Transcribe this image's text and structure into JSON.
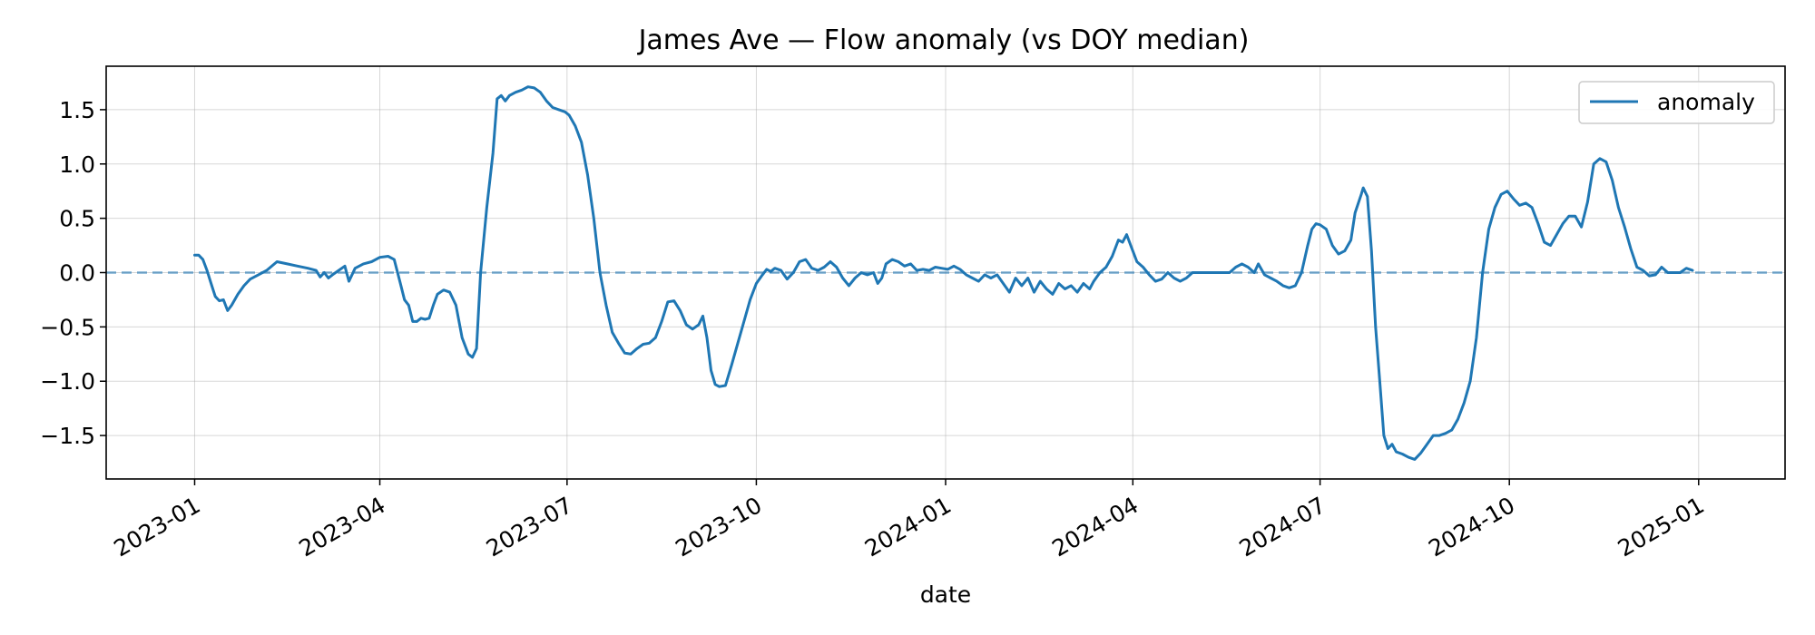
{
  "chart_data": {
    "type": "line",
    "title": "James Ave — Flow anomaly (vs DOY median)",
    "xlabel": "date",
    "ylabel": "",
    "x_ticks": [
      "2023-01",
      "2023-04",
      "2023-07",
      "2023-10",
      "2024-01",
      "2024-04",
      "2024-07",
      "2024-10",
      "2025-01"
    ],
    "y_ticks": [
      "−1.5",
      "−1.0",
      "−0.5",
      "0.0",
      "0.5",
      "1.0",
      "1.5"
    ],
    "xlim": [
      "2022-11-19",
      "2025-02-12"
    ],
    "ylim": [
      -1.9,
      1.9
    ],
    "grid": true,
    "legend": {
      "position": "top-right",
      "entries": [
        "anomaly"
      ]
    },
    "reference_line": {
      "y": 0.0,
      "style": "dashed"
    },
    "colors": {
      "series": "#1f77b4"
    },
    "series": [
      {
        "name": "anomaly",
        "points": [
          [
            "2023-01-01",
            0.16
          ],
          [
            "2023-01-03",
            0.16
          ],
          [
            "2023-01-05",
            0.12
          ],
          [
            "2023-01-07",
            0.02
          ],
          [
            "2023-01-09",
            -0.1
          ],
          [
            "2023-01-11",
            -0.22
          ],
          [
            "2023-01-13",
            -0.26
          ],
          [
            "2023-01-15",
            -0.25
          ],
          [
            "2023-01-17",
            -0.35
          ],
          [
            "2023-01-19",
            -0.3
          ],
          [
            "2023-01-22",
            -0.2
          ],
          [
            "2023-01-25",
            -0.12
          ],
          [
            "2023-01-28",
            -0.06
          ],
          [
            "2023-02-01",
            -0.02
          ],
          [
            "2023-02-05",
            0.02
          ],
          [
            "2023-02-10",
            0.1
          ],
          [
            "2023-02-15",
            0.08
          ],
          [
            "2023-02-20",
            0.06
          ],
          [
            "2023-02-25",
            0.04
          ],
          [
            "2023-03-01",
            0.02
          ],
          [
            "2023-03-03",
            -0.04
          ],
          [
            "2023-03-05",
            0.0
          ],
          [
            "2023-03-07",
            -0.05
          ],
          [
            "2023-03-09",
            -0.02
          ],
          [
            "2023-03-12",
            0.02
          ],
          [
            "2023-03-15",
            0.06
          ],
          [
            "2023-03-17",
            -0.08
          ],
          [
            "2023-03-20",
            0.04
          ],
          [
            "2023-03-24",
            0.08
          ],
          [
            "2023-03-28",
            0.1
          ],
          [
            "2023-04-01",
            0.14
          ],
          [
            "2023-04-05",
            0.15
          ],
          [
            "2023-04-08",
            0.12
          ],
          [
            "2023-04-11",
            -0.1
          ],
          [
            "2023-04-13",
            -0.25
          ],
          [
            "2023-04-15",
            -0.3
          ],
          [
            "2023-04-17",
            -0.45
          ],
          [
            "2023-04-19",
            -0.45
          ],
          [
            "2023-04-21",
            -0.42
          ],
          [
            "2023-04-23",
            -0.43
          ],
          [
            "2023-04-25",
            -0.42
          ],
          [
            "2023-04-27",
            -0.3
          ],
          [
            "2023-04-29",
            -0.2
          ],
          [
            "2023-05-02",
            -0.16
          ],
          [
            "2023-05-05",
            -0.18
          ],
          [
            "2023-05-08",
            -0.3
          ],
          [
            "2023-05-11",
            -0.6
          ],
          [
            "2023-05-14",
            -0.75
          ],
          [
            "2023-05-16",
            -0.78
          ],
          [
            "2023-05-18",
            -0.7
          ],
          [
            "2023-05-20",
            0.0
          ],
          [
            "2023-05-23",
            0.6
          ],
          [
            "2023-05-26",
            1.1
          ],
          [
            "2023-05-28",
            1.6
          ],
          [
            "2023-05-30",
            1.63
          ],
          [
            "2023-06-01",
            1.58
          ],
          [
            "2023-06-03",
            1.63
          ],
          [
            "2023-06-06",
            1.66
          ],
          [
            "2023-06-09",
            1.68
          ],
          [
            "2023-06-12",
            1.71
          ],
          [
            "2023-06-15",
            1.7
          ],
          [
            "2023-06-18",
            1.66
          ],
          [
            "2023-06-21",
            1.58
          ],
          [
            "2023-06-24",
            1.52
          ],
          [
            "2023-06-27",
            1.5
          ],
          [
            "2023-06-30",
            1.48
          ],
          [
            "2023-07-02",
            1.45
          ],
          [
            "2023-07-05",
            1.35
          ],
          [
            "2023-07-08",
            1.2
          ],
          [
            "2023-07-11",
            0.9
          ],
          [
            "2023-07-14",
            0.5
          ],
          [
            "2023-07-17",
            0.0
          ],
          [
            "2023-07-20",
            -0.3
          ],
          [
            "2023-07-23",
            -0.55
          ],
          [
            "2023-07-26",
            -0.65
          ],
          [
            "2023-07-29",
            -0.74
          ],
          [
            "2023-08-01",
            -0.75
          ],
          [
            "2023-08-04",
            -0.7
          ],
          [
            "2023-08-07",
            -0.66
          ],
          [
            "2023-08-10",
            -0.65
          ],
          [
            "2023-08-13",
            -0.6
          ],
          [
            "2023-08-16",
            -0.45
          ],
          [
            "2023-08-19",
            -0.27
          ],
          [
            "2023-08-22",
            -0.26
          ],
          [
            "2023-08-25",
            -0.35
          ],
          [
            "2023-08-28",
            -0.48
          ],
          [
            "2023-08-31",
            -0.52
          ],
          [
            "2023-09-03",
            -0.48
          ],
          [
            "2023-09-05",
            -0.4
          ],
          [
            "2023-09-07",
            -0.6
          ],
          [
            "2023-09-09",
            -0.9
          ],
          [
            "2023-09-11",
            -1.03
          ],
          [
            "2023-09-13",
            -1.05
          ],
          [
            "2023-09-16",
            -1.04
          ],
          [
            "2023-09-19",
            -0.85
          ],
          [
            "2023-09-22",
            -0.65
          ],
          [
            "2023-09-25",
            -0.45
          ],
          [
            "2023-09-28",
            -0.25
          ],
          [
            "2023-10-01",
            -0.1
          ],
          [
            "2023-10-04",
            -0.02
          ],
          [
            "2023-10-06",
            0.03
          ],
          [
            "2023-10-08",
            0.01
          ],
          [
            "2023-10-10",
            0.04
          ],
          [
            "2023-10-13",
            0.02
          ],
          [
            "2023-10-16",
            -0.06
          ],
          [
            "2023-10-19",
            0.0
          ],
          [
            "2023-10-22",
            0.1
          ],
          [
            "2023-10-25",
            0.12
          ],
          [
            "2023-10-28",
            0.04
          ],
          [
            "2023-10-31",
            0.02
          ],
          [
            "2023-11-03",
            0.05
          ],
          [
            "2023-11-06",
            0.1
          ],
          [
            "2023-11-09",
            0.05
          ],
          [
            "2023-11-12",
            -0.05
          ],
          [
            "2023-11-15",
            -0.12
          ],
          [
            "2023-11-18",
            -0.05
          ],
          [
            "2023-11-21",
            0.0
          ],
          [
            "2023-11-24",
            -0.02
          ],
          [
            "2023-11-27",
            0.0
          ],
          [
            "2023-11-29",
            -0.1
          ],
          [
            "2023-12-01",
            -0.05
          ],
          [
            "2023-12-03",
            0.08
          ],
          [
            "2023-12-06",
            0.12
          ],
          [
            "2023-12-09",
            0.1
          ],
          [
            "2023-12-12",
            0.06
          ],
          [
            "2023-12-15",
            0.08
          ],
          [
            "2023-12-18",
            0.02
          ],
          [
            "2023-12-21",
            0.03
          ],
          [
            "2023-12-24",
            0.02
          ],
          [
            "2023-12-27",
            0.05
          ],
          [
            "2023-12-30",
            0.04
          ],
          [
            "2024-01-02",
            0.03
          ],
          [
            "2024-01-05",
            0.06
          ],
          [
            "2024-01-08",
            0.03
          ],
          [
            "2024-01-11",
            -0.02
          ],
          [
            "2024-01-14",
            -0.05
          ],
          [
            "2024-01-17",
            -0.08
          ],
          [
            "2024-01-20",
            -0.02
          ],
          [
            "2024-01-23",
            -0.05
          ],
          [
            "2024-01-26",
            -0.02
          ],
          [
            "2024-01-29",
            -0.1
          ],
          [
            "2024-02-01",
            -0.18
          ],
          [
            "2024-02-04",
            -0.05
          ],
          [
            "2024-02-07",
            -0.12
          ],
          [
            "2024-02-10",
            -0.05
          ],
          [
            "2024-02-13",
            -0.18
          ],
          [
            "2024-02-16",
            -0.08
          ],
          [
            "2024-02-19",
            -0.15
          ],
          [
            "2024-02-22",
            -0.2
          ],
          [
            "2024-02-25",
            -0.1
          ],
          [
            "2024-02-28",
            -0.15
          ],
          [
            "2024-03-02",
            -0.12
          ],
          [
            "2024-03-05",
            -0.18
          ],
          [
            "2024-03-08",
            -0.1
          ],
          [
            "2024-03-11",
            -0.15
          ],
          [
            "2024-03-13",
            -0.08
          ],
          [
            "2024-03-16",
            0.0
          ],
          [
            "2024-03-19",
            0.05
          ],
          [
            "2024-03-22",
            0.15
          ],
          [
            "2024-03-25",
            0.3
          ],
          [
            "2024-03-27",
            0.28
          ],
          [
            "2024-03-29",
            0.35
          ],
          [
            "2024-03-31",
            0.25
          ],
          [
            "2024-04-03",
            0.1
          ],
          [
            "2024-04-06",
            0.05
          ],
          [
            "2024-04-09",
            -0.02
          ],
          [
            "2024-04-12",
            -0.08
          ],
          [
            "2024-04-15",
            -0.06
          ],
          [
            "2024-04-18",
            0.0
          ],
          [
            "2024-04-21",
            -0.05
          ],
          [
            "2024-04-24",
            -0.08
          ],
          [
            "2024-04-27",
            -0.05
          ],
          [
            "2024-04-30",
            0.0
          ],
          [
            "2024-05-03",
            0.0
          ],
          [
            "2024-05-06",
            0.0
          ],
          [
            "2024-05-09",
            0.0
          ],
          [
            "2024-05-12",
            0.0
          ],
          [
            "2024-05-15",
            0.0
          ],
          [
            "2024-05-18",
            0.0
          ],
          [
            "2024-05-21",
            0.05
          ],
          [
            "2024-05-24",
            0.08
          ],
          [
            "2024-05-27",
            0.05
          ],
          [
            "2024-05-30",
            0.0
          ],
          [
            "2024-06-01",
            0.08
          ],
          [
            "2024-06-04",
            -0.02
          ],
          [
            "2024-06-07",
            -0.05
          ],
          [
            "2024-06-10",
            -0.08
          ],
          [
            "2024-06-13",
            -0.12
          ],
          [
            "2024-06-16",
            -0.14
          ],
          [
            "2024-06-19",
            -0.12
          ],
          [
            "2024-06-22",
            0.0
          ],
          [
            "2024-06-25",
            0.25
          ],
          [
            "2024-06-27",
            0.4
          ],
          [
            "2024-06-29",
            0.45
          ],
          [
            "2024-07-01",
            0.44
          ],
          [
            "2024-07-04",
            0.4
          ],
          [
            "2024-07-07",
            0.25
          ],
          [
            "2024-07-10",
            0.17
          ],
          [
            "2024-07-13",
            0.2
          ],
          [
            "2024-07-16",
            0.3
          ],
          [
            "2024-07-18",
            0.55
          ],
          [
            "2024-07-21",
            0.72
          ],
          [
            "2024-07-22",
            0.78
          ],
          [
            "2024-07-24",
            0.7
          ],
          [
            "2024-07-26",
            0.2
          ],
          [
            "2024-07-28",
            -0.5
          ],
          [
            "2024-07-30",
            -1.0
          ],
          [
            "2024-08-01",
            -1.5
          ],
          [
            "2024-08-03",
            -1.62
          ],
          [
            "2024-08-05",
            -1.58
          ],
          [
            "2024-08-07",
            -1.65
          ],
          [
            "2024-08-10",
            -1.67
          ],
          [
            "2024-08-13",
            -1.7
          ],
          [
            "2024-08-16",
            -1.72
          ],
          [
            "2024-08-19",
            -1.66
          ],
          [
            "2024-08-22",
            -1.58
          ],
          [
            "2024-08-25",
            -1.5
          ],
          [
            "2024-08-28",
            -1.5
          ],
          [
            "2024-08-31",
            -1.48
          ],
          [
            "2024-09-03",
            -1.45
          ],
          [
            "2024-09-06",
            -1.35
          ],
          [
            "2024-09-09",
            -1.2
          ],
          [
            "2024-09-12",
            -1.0
          ],
          [
            "2024-09-15",
            -0.6
          ],
          [
            "2024-09-18",
            0.0
          ],
          [
            "2024-09-21",
            0.4
          ],
          [
            "2024-09-24",
            0.6
          ],
          [
            "2024-09-27",
            0.72
          ],
          [
            "2024-09-30",
            0.75
          ],
          [
            "2024-10-03",
            0.68
          ],
          [
            "2024-10-06",
            0.62
          ],
          [
            "2024-10-09",
            0.64
          ],
          [
            "2024-10-12",
            0.6
          ],
          [
            "2024-10-15",
            0.45
          ],
          [
            "2024-10-18",
            0.28
          ],
          [
            "2024-10-21",
            0.25
          ],
          [
            "2024-10-24",
            0.35
          ],
          [
            "2024-10-27",
            0.45
          ],
          [
            "2024-10-30",
            0.52
          ],
          [
            "2024-11-02",
            0.52
          ],
          [
            "2024-11-05",
            0.42
          ],
          [
            "2024-11-08",
            0.65
          ],
          [
            "2024-11-11",
            1.0
          ],
          [
            "2024-11-14",
            1.05
          ],
          [
            "2024-11-17",
            1.02
          ],
          [
            "2024-11-20",
            0.85
          ],
          [
            "2024-11-23",
            0.6
          ],
          [
            "2024-11-26",
            0.42
          ],
          [
            "2024-11-29",
            0.22
          ],
          [
            "2024-12-02",
            0.05
          ],
          [
            "2024-12-05",
            0.02
          ],
          [
            "2024-12-08",
            -0.03
          ],
          [
            "2024-12-11",
            -0.02
          ],
          [
            "2024-12-14",
            0.05
          ],
          [
            "2024-12-17",
            0.0
          ],
          [
            "2024-12-20",
            0.0
          ],
          [
            "2024-12-23",
            0.0
          ],
          [
            "2024-12-26",
            0.04
          ],
          [
            "2024-12-29",
            0.02
          ]
        ]
      }
    ]
  }
}
